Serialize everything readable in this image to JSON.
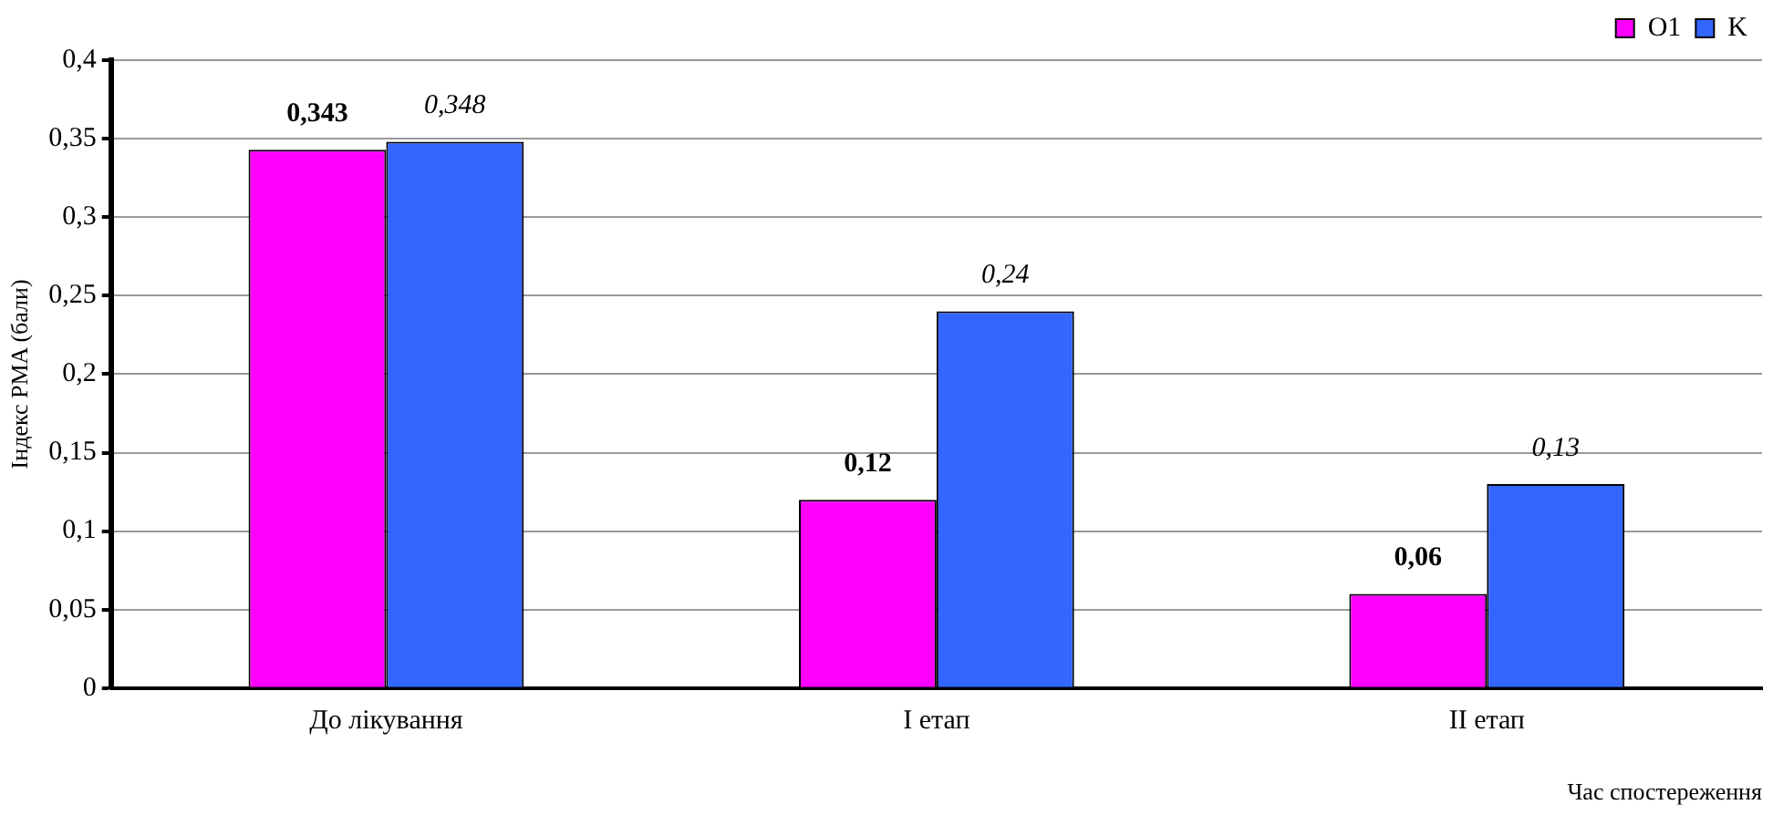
{
  "chart_data": {
    "type": "bar",
    "categories": [
      "До лікування",
      "I етап",
      "II етап"
    ],
    "series": [
      {
        "name": "O1",
        "color": "#ff00ff",
        "values": [
          0.343,
          0.12,
          0.06
        ],
        "value_labels": [
          "0,343",
          "0,12",
          "0,06"
        ]
      },
      {
        "name": "K",
        "color": "#3366ff",
        "values": [
          0.348,
          0.24,
          0.13
        ],
        "value_labels": [
          "0,348",
          "0,24",
          "0,13"
        ]
      }
    ],
    "ylabel": "Індекс PMA (бали)",
    "xlabel": "Час спостереження",
    "ylim": [
      0,
      0.4
    ],
    "yticks": [
      {
        "value": 0,
        "label": "0"
      },
      {
        "value": 0.05,
        "label": "0,05"
      },
      {
        "value": 0.1,
        "label": "0,1"
      },
      {
        "value": 0.15,
        "label": "0,15"
      },
      {
        "value": 0.2,
        "label": "0,2"
      },
      {
        "value": 0.25,
        "label": "0,25"
      },
      {
        "value": 0.3,
        "label": "0,3"
      },
      {
        "value": 0.35,
        "label": "0,35"
      },
      {
        "value": 0.4,
        "label": "0,4"
      }
    ],
    "grid": "y",
    "legend": "top right"
  }
}
